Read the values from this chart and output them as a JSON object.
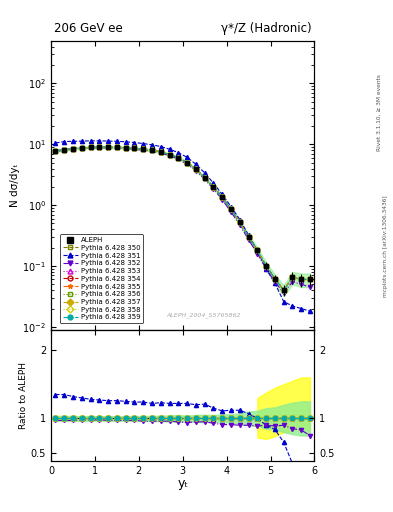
{
  "title_left": "206 GeV ee",
  "title_right": "γ*/Z (Hadronic)",
  "ylabel_main": "N dσ/dyₜ",
  "ylabel_ratio": "Ratio to ALEPH",
  "xlabel": "yₜ",
  "right_label_top": "Rivet 3.1.10, ≥ 3M events",
  "right_label_mid": "mcplots.cern.ch [arXiv:1306.3436]",
  "watermark": "ALEPH_2004_S5765862",
  "x_data": [
    0.1,
    0.3,
    0.5,
    0.7,
    0.9,
    1.1,
    1.3,
    1.5,
    1.7,
    1.9,
    2.1,
    2.3,
    2.5,
    2.7,
    2.9,
    3.1,
    3.3,
    3.5,
    3.7,
    3.9,
    4.1,
    4.3,
    4.5,
    4.7,
    4.9,
    5.1,
    5.3,
    5.5,
    5.7,
    5.9
  ],
  "aleph_y": [
    7.8,
    8.2,
    8.5,
    8.7,
    8.9,
    9.0,
    9.0,
    8.9,
    8.8,
    8.6,
    8.3,
    8.0,
    7.5,
    6.8,
    6.0,
    5.0,
    3.9,
    2.8,
    2.0,
    1.35,
    0.85,
    0.52,
    0.3,
    0.18,
    0.1,
    0.062,
    0.04,
    0.065,
    0.06,
    0.06
  ],
  "aleph_err_lo": [
    0.3,
    0.3,
    0.3,
    0.3,
    0.3,
    0.3,
    0.3,
    0.3,
    0.3,
    0.3,
    0.3,
    0.3,
    0.3,
    0.3,
    0.3,
    0.2,
    0.2,
    0.15,
    0.1,
    0.08,
    0.05,
    0.04,
    0.03,
    0.02,
    0.015,
    0.01,
    0.008,
    0.015,
    0.015,
    0.015
  ],
  "aleph_err_hi": [
    0.3,
    0.3,
    0.3,
    0.3,
    0.3,
    0.3,
    0.3,
    0.3,
    0.3,
    0.3,
    0.3,
    0.3,
    0.3,
    0.3,
    0.3,
    0.2,
    0.2,
    0.15,
    0.1,
    0.08,
    0.05,
    0.04,
    0.03,
    0.02,
    0.015,
    0.01,
    0.008,
    0.015,
    0.015,
    0.015
  ],
  "series": [
    {
      "label": "Pythia 6.428 350",
      "color": "#808000",
      "linestyle": "--",
      "marker": "s",
      "markerfacecolor": "none",
      "y": [
        7.8,
        8.2,
        8.5,
        8.7,
        8.9,
        9.0,
        9.0,
        8.9,
        8.8,
        8.6,
        8.3,
        8.0,
        7.5,
        6.8,
        6.0,
        5.0,
        3.9,
        2.8,
        2.0,
        1.35,
        0.85,
        0.52,
        0.3,
        0.18,
        0.1,
        0.062,
        0.04,
        0.065,
        0.06,
        0.06
      ],
      "ratio": [
        1.0,
        1.0,
        1.0,
        1.0,
        1.0,
        1.0,
        1.0,
        1.0,
        1.0,
        1.0,
        1.0,
        1.0,
        1.0,
        1.0,
        1.0,
        1.0,
        1.0,
        1.0,
        1.0,
        1.0,
        1.0,
        1.0,
        1.0,
        1.0,
        1.0,
        1.0,
        1.0,
        1.0,
        1.0,
        1.0
      ]
    },
    {
      "label": "Pythia 6.428 351",
      "color": "#0000cc",
      "linestyle": "--",
      "marker": "^",
      "markerfacecolor": "#0000cc",
      "y": [
        10.5,
        11.1,
        11.2,
        11.3,
        11.4,
        11.4,
        11.3,
        11.2,
        11.0,
        10.7,
        10.3,
        9.8,
        9.2,
        8.3,
        7.3,
        6.1,
        4.7,
        3.4,
        2.3,
        1.5,
        0.95,
        0.58,
        0.32,
        0.18,
        0.09,
        0.052,
        0.026,
        0.022,
        0.02,
        0.018
      ],
      "ratio": [
        1.35,
        1.35,
        1.32,
        1.3,
        1.28,
        1.27,
        1.26,
        1.26,
        1.25,
        1.24,
        1.24,
        1.22,
        1.23,
        1.22,
        1.22,
        1.22,
        1.2,
        1.21,
        1.15,
        1.11,
        1.12,
        1.12,
        1.07,
        1.0,
        0.9,
        0.84,
        0.65,
        0.34,
        0.33,
        0.3
      ]
    },
    {
      "label": "Pythia 6.428 352",
      "color": "#6600cc",
      "linestyle": "-.",
      "marker": "v",
      "markerfacecolor": "#6600cc",
      "y": [
        7.6,
        8.0,
        8.3,
        8.5,
        8.7,
        8.8,
        8.7,
        8.6,
        8.5,
        8.3,
        8.0,
        7.7,
        7.2,
        6.5,
        5.7,
        4.7,
        3.7,
        2.65,
        1.85,
        1.23,
        0.77,
        0.47,
        0.27,
        0.16,
        0.09,
        0.055,
        0.036,
        0.055,
        0.05,
        0.045
      ],
      "ratio": [
        0.97,
        0.97,
        0.97,
        0.98,
        0.98,
        0.98,
        0.97,
        0.97,
        0.97,
        0.97,
        0.96,
        0.96,
        0.96,
        0.96,
        0.95,
        0.94,
        0.95,
        0.95,
        0.93,
        0.91,
        0.91,
        0.9,
        0.9,
        0.89,
        0.9,
        0.89,
        0.9,
        0.85,
        0.83,
        0.75
      ]
    },
    {
      "label": "Pythia 6.428 353",
      "color": "#cc00cc",
      "linestyle": ":",
      "marker": "^",
      "markerfacecolor": "none",
      "y": [
        7.8,
        8.2,
        8.5,
        8.7,
        8.9,
        9.0,
        9.0,
        8.9,
        8.8,
        8.6,
        8.3,
        8.0,
        7.5,
        6.8,
        6.0,
        5.0,
        3.9,
        2.8,
        2.0,
        1.35,
        0.85,
        0.52,
        0.3,
        0.18,
        0.1,
        0.062,
        0.04,
        0.065,
        0.06,
        0.06
      ],
      "ratio": [
        1.0,
        1.0,
        1.0,
        1.0,
        1.0,
        1.0,
        1.0,
        1.0,
        1.0,
        1.0,
        1.0,
        1.0,
        1.0,
        1.0,
        1.0,
        1.0,
        1.0,
        1.0,
        1.0,
        1.0,
        1.0,
        1.0,
        1.0,
        1.0,
        1.0,
        1.0,
        1.0,
        1.0,
        1.0,
        1.0
      ]
    },
    {
      "label": "Pythia 6.428 354",
      "color": "#cc0000",
      "linestyle": "--",
      "marker": "o",
      "markerfacecolor": "none",
      "y": [
        7.8,
        8.2,
        8.5,
        8.7,
        8.9,
        9.0,
        9.0,
        8.9,
        8.8,
        8.6,
        8.3,
        8.0,
        7.5,
        6.8,
        6.0,
        5.0,
        3.9,
        2.8,
        2.0,
        1.35,
        0.85,
        0.52,
        0.3,
        0.18,
        0.1,
        0.062,
        0.04,
        0.065,
        0.06,
        0.06
      ],
      "ratio": [
        1.0,
        1.0,
        1.0,
        1.0,
        1.0,
        1.0,
        1.0,
        1.0,
        1.0,
        1.0,
        1.0,
        1.0,
        1.0,
        1.0,
        1.0,
        1.0,
        1.0,
        1.0,
        1.0,
        1.0,
        1.0,
        1.0,
        1.0,
        1.0,
        1.0,
        1.0,
        1.0,
        1.0,
        1.0,
        1.0
      ]
    },
    {
      "label": "Pythia 6.428 355",
      "color": "#ff6600",
      "linestyle": "-.",
      "marker": "*",
      "markerfacecolor": "#ff6600",
      "y": [
        7.8,
        8.2,
        8.5,
        8.7,
        8.9,
        9.0,
        9.0,
        8.9,
        8.8,
        8.6,
        8.3,
        8.0,
        7.5,
        6.8,
        6.0,
        5.0,
        3.9,
        2.8,
        2.0,
        1.35,
        0.85,
        0.52,
        0.3,
        0.18,
        0.1,
        0.062,
        0.04,
        0.065,
        0.06,
        0.06
      ],
      "ratio": [
        1.0,
        1.0,
        1.0,
        1.0,
        1.0,
        1.0,
        1.0,
        1.0,
        1.0,
        1.0,
        1.0,
        1.0,
        1.0,
        1.0,
        1.0,
        1.0,
        1.0,
        1.0,
        1.0,
        1.0,
        1.0,
        1.0,
        1.0,
        1.0,
        1.0,
        1.0,
        1.0,
        1.0,
        1.0,
        1.0
      ]
    },
    {
      "label": "Pythia 6.428 356",
      "color": "#669900",
      "linestyle": ":",
      "marker": "s",
      "markerfacecolor": "none",
      "y": [
        7.8,
        8.2,
        8.5,
        8.7,
        8.9,
        9.0,
        9.0,
        8.9,
        8.8,
        8.6,
        8.3,
        8.0,
        7.5,
        6.8,
        6.0,
        5.0,
        3.9,
        2.8,
        2.0,
        1.35,
        0.85,
        0.52,
        0.3,
        0.18,
        0.1,
        0.062,
        0.04,
        0.065,
        0.06,
        0.06
      ],
      "ratio": [
        1.0,
        1.0,
        1.0,
        1.0,
        1.0,
        1.0,
        1.0,
        1.0,
        1.0,
        1.0,
        1.0,
        1.0,
        1.0,
        1.0,
        1.0,
        1.0,
        1.0,
        1.0,
        1.0,
        1.0,
        1.0,
        1.0,
        1.0,
        1.0,
        1.0,
        1.0,
        1.0,
        1.0,
        1.0,
        1.0
      ]
    },
    {
      "label": "Pythia 6.428 357",
      "color": "#ccaa00",
      "linestyle": "--",
      "marker": "D",
      "markerfacecolor": "#ccaa00",
      "y": [
        7.8,
        8.2,
        8.5,
        8.7,
        8.9,
        9.0,
        9.0,
        8.9,
        8.8,
        8.6,
        8.3,
        8.0,
        7.5,
        6.8,
        6.0,
        5.0,
        3.9,
        2.8,
        2.0,
        1.35,
        0.85,
        0.52,
        0.3,
        0.18,
        0.1,
        0.062,
        0.04,
        0.065,
        0.06,
        0.06
      ],
      "ratio": [
        1.0,
        1.0,
        1.0,
        1.0,
        1.0,
        1.0,
        1.0,
        1.0,
        1.0,
        1.0,
        1.0,
        1.0,
        1.0,
        1.0,
        1.0,
        1.0,
        1.0,
        1.0,
        1.0,
        1.0,
        1.0,
        1.0,
        1.0,
        1.0,
        1.0,
        1.0,
        1.0,
        1.0,
        1.0,
        1.0
      ]
    },
    {
      "label": "Pythia 6.428 358",
      "color": "#cccc00",
      "linestyle": ":",
      "marker": "D",
      "markerfacecolor": "none",
      "y": [
        7.8,
        8.2,
        8.5,
        8.7,
        8.9,
        9.0,
        9.0,
        8.9,
        8.8,
        8.6,
        8.3,
        8.0,
        7.5,
        6.8,
        6.0,
        5.0,
        3.9,
        2.8,
        2.0,
        1.35,
        0.85,
        0.52,
        0.3,
        0.18,
        0.1,
        0.062,
        0.04,
        0.065,
        0.06,
        0.06
      ],
      "ratio": [
        1.0,
        1.0,
        1.0,
        1.0,
        1.0,
        1.0,
        1.0,
        1.0,
        1.0,
        1.0,
        1.0,
        1.0,
        1.0,
        1.0,
        1.0,
        1.0,
        1.0,
        1.0,
        1.0,
        1.0,
        1.0,
        1.0,
        1.0,
        1.0,
        1.0,
        1.0,
        1.0,
        1.0,
        1.0,
        1.0
      ]
    },
    {
      "label": "Pythia 6.428 359",
      "color": "#00aaaa",
      "linestyle": "-.",
      "marker": "o",
      "markerfacecolor": "#00aaaa",
      "y": [
        7.8,
        8.2,
        8.5,
        8.7,
        8.9,
        9.0,
        9.0,
        8.9,
        8.8,
        8.6,
        8.3,
        8.0,
        7.5,
        6.8,
        6.0,
        5.0,
        3.9,
        2.8,
        2.0,
        1.35,
        0.85,
        0.52,
        0.3,
        0.18,
        0.1,
        0.062,
        0.04,
        0.065,
        0.06,
        0.06
      ],
      "ratio": [
        1.0,
        1.0,
        1.0,
        1.0,
        1.0,
        1.0,
        1.0,
        1.0,
        1.0,
        1.0,
        1.0,
        1.0,
        1.0,
        1.0,
        1.0,
        1.0,
        1.0,
        1.0,
        1.0,
        1.0,
        1.0,
        1.0,
        1.0,
        1.0,
        1.0,
        1.0,
        1.0,
        1.0,
        1.0,
        1.0
      ]
    }
  ],
  "yellow_band_x": [
    4.7,
    4.9,
    5.1,
    5.3,
    5.5,
    5.7,
    5.9
  ],
  "yellow_band_lo": [
    0.72,
    0.7,
    0.74,
    0.8,
    0.82,
    0.85,
    0.82
  ],
  "yellow_band_hi": [
    1.3,
    1.38,
    1.45,
    1.5,
    1.55,
    1.6,
    1.6
  ]
}
